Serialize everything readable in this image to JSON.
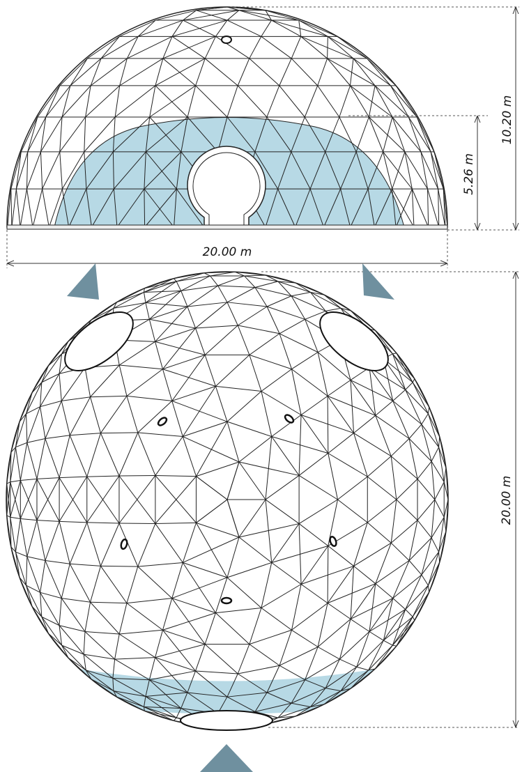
{
  "dimensions": {
    "elevation_height": "10.20 m",
    "band_height": "5.26 m",
    "elevation_width": "20.00 m",
    "plan_diameter": "20.00 m"
  }
}
